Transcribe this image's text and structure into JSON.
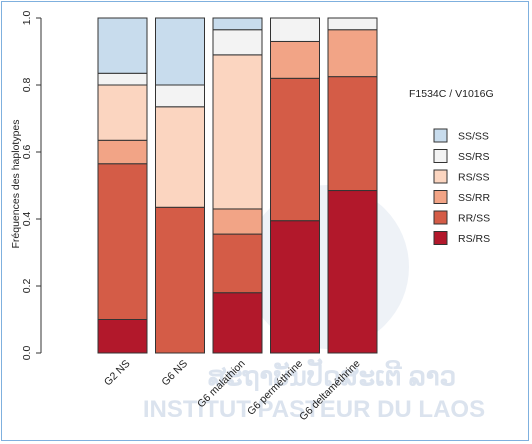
{
  "colors": {
    "SS/SS": "#c8dced",
    "SS/RS": "#f3f3f3",
    "RS/SS": "#fbd5c0",
    "SS/RR": "#f2a486",
    "RR/SS": "#d45c47",
    "RS/RS": "#b2182b"
  },
  "watermark": {
    "line1": "ສະຖາບັນປັດສະເຕີ ລາວ",
    "line2": "INSTITUT PASTEUR DU LAOS"
  },
  "chart_data": {
    "type": "bar",
    "stacked": true,
    "title": "",
    "xlabel": "",
    "ylabel": "Fréquences des haplotypes",
    "ylim": [
      0,
      1
    ],
    "yticks": [
      "0.0",
      "0.2",
      "0.4",
      "0.6",
      "0.8",
      "1.0"
    ],
    "categories": [
      "G2 NS",
      "G6 NS",
      "G6 malathion",
      "G6 perméthrine",
      "G6 deltaméthrine"
    ],
    "legend_title": "F1534C / V1016G",
    "legend_position": "right",
    "series": [
      {
        "name": "RS/RS",
        "values": [
          0.1,
          0.0,
          0.18,
          0.395,
          0.485
        ]
      },
      {
        "name": "RR/SS",
        "values": [
          0.465,
          0.435,
          0.175,
          0.425,
          0.34
        ]
      },
      {
        "name": "SS/RR",
        "values": [
          0.07,
          0.0,
          0.075,
          0.11,
          0.14
        ]
      },
      {
        "name": "RS/SS",
        "values": [
          0.165,
          0.3,
          0.46,
          0.0,
          0.0
        ]
      },
      {
        "name": "SS/RS",
        "values": [
          0.035,
          0.065,
          0.075,
          0.07,
          0.035
        ]
      },
      {
        "name": "SS/SS",
        "values": [
          0.165,
          0.2,
          0.035,
          0.0,
          0.0
        ]
      }
    ],
    "legend_order": [
      "SS/SS",
      "SS/RS",
      "RS/SS",
      "SS/RR",
      "RR/SS",
      "RS/RS"
    ]
  }
}
